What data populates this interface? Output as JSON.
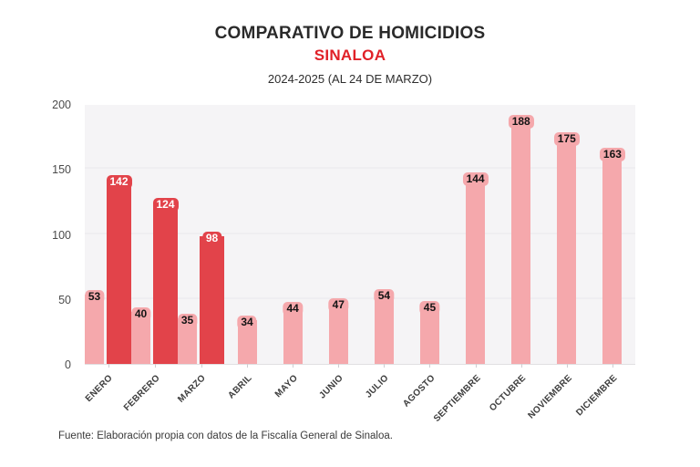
{
  "header": {
    "title": "COMPARATIVO DE HOMICIDIOS",
    "subtitle": "SINALOA",
    "period": "2024-2025 (AL 24 DE MARZO)"
  },
  "footer": {
    "source": "Fuente: Elaboración propia con datos de la Fiscalía General de Sinaloa."
  },
  "colors": {
    "title_text": "#2a2a2a",
    "subtitle_red": "#e02128",
    "bar_2024_pink": "#f5a8ac",
    "bar_2025_red": "#e2434a",
    "plot_background": "#f5f4f6",
    "gridline": "#efeef1",
    "axis_text": "#4c4c4c",
    "label_on_pink": "#141414",
    "label_on_red": "#ffffff"
  },
  "chart_data": {
    "type": "bar",
    "title": "COMPARATIVO DE HOMICIDIOS",
    "subtitle": "SINALOA",
    "period_label": "2024-2025 (AL 24 DE MARZO)",
    "categories": [
      "ENERO",
      "FEBRERO",
      "MARZO",
      "ABRIL",
      "MAYO",
      "JUNIO",
      "JULIO",
      "AGOSTO",
      "SEPTIEMBRE",
      "OCTUBRE",
      "NOVIEMBRE",
      "DICIEMBRE"
    ],
    "series": [
      {
        "name": "2024",
        "color": "#f5a8ac",
        "label_text_color": "#141414",
        "values": [
          53,
          40,
          35,
          34,
          44,
          47,
          54,
          45,
          144,
          188,
          175,
          163
        ]
      },
      {
        "name": "2025",
        "color": "#e2434a",
        "label_text_color": "#ffffff",
        "values": [
          142,
          124,
          98,
          null,
          null,
          null,
          null,
          null,
          null,
          null,
          null,
          null
        ]
      }
    ],
    "ylim": [
      0,
      200
    ],
    "yticks": [
      0,
      50,
      100,
      150,
      200
    ],
    "grid": true,
    "legend_position": "none",
    "value_labels": true,
    "source_note": "Fuente: Elaboración propia con datos de la Fiscalía General de Sinaloa."
  }
}
